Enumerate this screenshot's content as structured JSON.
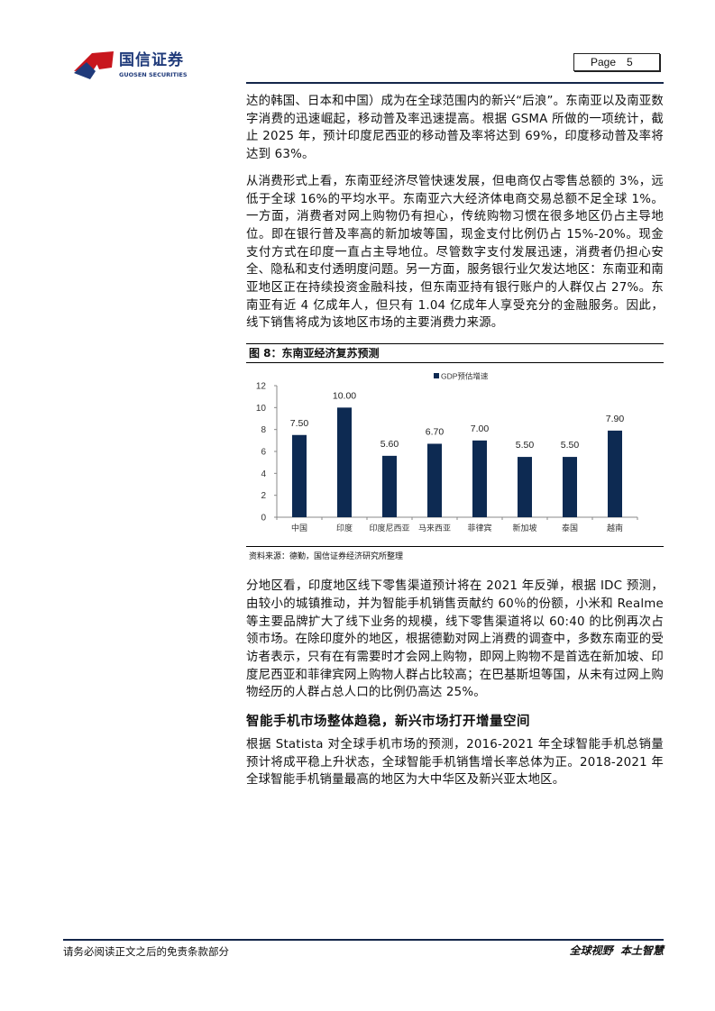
{
  "header": {
    "logo_cn": "国信证券",
    "logo_en": "GUOSEN SECURITIES",
    "page_label": "Page",
    "page_number": "5"
  },
  "body": {
    "p1": "达的韩国、日本和中国）成为在全球范围内的新兴“后浪”。东南亚以及南亚数字消费的迅速崛起，移动普及率迅速提高。根据 GSMA 所做的一项统计，截止 2025 年，预计印度尼西亚的移动普及率将达到 69%，印度移动普及率将达到 63%。",
    "p2": "从消费形式上看，东南亚经济尽管快速发展，但电商仅占零售总额的 3%，远低于全球 16%的平均水平。东南亚六大经济体电商交易总额不足全球 1%。一方面，消费者对网上购物仍有担心，传统购物习惯在很多地区仍占主导地位。即在银行普及率高的新加坡等国，现金支付比例仍占 15%-20%。现金支付方式在印度一直占主导地位。尽管数字支付发展迅速，消费者仍担心安全、隐私和支付透明度问题。另一方面，服务银行业欠发达地区：东南亚和南亚地区正在持续投资金融科技，但东南亚持有银行账户的人群仅占 27%。东南亚有近 4 亿成年人，但只有 1.04 亿成年人享受充分的金融服务。因此，线下销售将成为该地区市场的主要消费力来源。",
    "p3": "分地区看，印度地区线下零售渠道预计将在 2021 年反弹，根据 IDC 预测，由较小的城镇推动，并为智能手机销售贡献约 60％的份额，小米和 Realme 等主要品牌扩大了线下业务的规模，线下零售渠道将以 60:40 的比例再次占领市场。在除印度外的地区，根据德勤对网上消费的调查中，多数东南亚的受访者表示，只有在有需要时才会网上购物，即网上购物不是首选在新加坡、印度尼西亚和菲律宾网上购物人群占比较高；在巴基斯坦等国，从未有过网上购物经历的人群占总人口的比例仍高达 25%。",
    "section_heading": "智能手机市场整体趋稳，新兴市场打开增量空间",
    "p4": "根据 Statista 对全球手机市场的预测，2016-2021 年全球智能手机总销量预计将成平稳上升状态，全球智能手机销售增长率总体为正。2018-2021 年全球智能手机销量最高的地区为大中华区及新兴亚太地区。"
  },
  "figure": {
    "title": "图 8：东南亚经济复苏预测",
    "source": "资料来源：德勤，国信证券经济研究所整理"
  },
  "chart_data": {
    "type": "bar",
    "categories": [
      "中国",
      "印度",
      "印度尼西亚",
      "马来西亚",
      "菲律宾",
      "新加坡",
      "泰国",
      "越南"
    ],
    "series": [
      {
        "name": "GDP预估增速",
        "values": [
          7.5,
          10.0,
          5.6,
          6.7,
          7.0,
          5.5,
          5.5,
          7.9
        ]
      }
    ],
    "data_labels": [
      "7.50",
      "10.00",
      "5.60",
      "6.70",
      "7.00",
      "5.50",
      "5.50",
      "7.90"
    ],
    "yticks": [
      "0",
      "2",
      "4",
      "6",
      "8",
      "10",
      "12"
    ],
    "ylim": [
      0,
      12
    ],
    "grid": false,
    "legend_position": "top",
    "bar_color": "#0d2a52"
  },
  "footer": {
    "disclaimer": "请务必阅读正文之后的免责条款部分",
    "slogan": "全球视野  本土智慧"
  },
  "colors": {
    "rule": "#14264a",
    "logo_red": "#c8161d",
    "logo_blue": "#1f3a7a"
  }
}
